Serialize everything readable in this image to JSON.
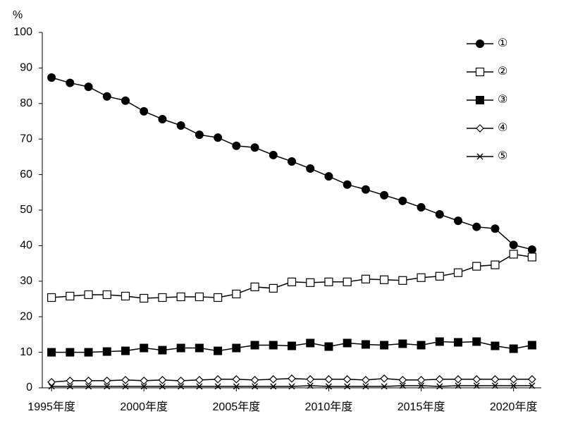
{
  "chart_data": {
    "type": "line",
    "y_label": "%",
    "x": [
      1995,
      1996,
      1997,
      1998,
      1999,
      2000,
      2001,
      2002,
      2003,
      2004,
      2005,
      2006,
      2007,
      2008,
      2009,
      2010,
      2011,
      2012,
      2013,
      2014,
      2015,
      2016,
      2017,
      2018,
      2019,
      2020,
      2021
    ],
    "xlim": [
      1994.5,
      2021.5
    ],
    "xticks": [
      {
        "value": 1995,
        "label": "1995年度"
      },
      {
        "value": 2000,
        "label": "2000年度"
      },
      {
        "value": 2005,
        "label": "2005年度"
      },
      {
        "value": 2010,
        "label": "2010年度"
      },
      {
        "value": 2015,
        "label": "2015年度"
      },
      {
        "value": 2020,
        "label": "2020年度"
      }
    ],
    "ylim": [
      0,
      100
    ],
    "yticks": [
      0,
      10,
      20,
      30,
      40,
      50,
      60,
      70,
      80,
      90,
      100
    ],
    "legend": "top-right",
    "series": [
      {
        "name": "①",
        "color": "#000000",
        "marker": "circle",
        "values": [
          87.3,
          85.8,
          84.7,
          82.0,
          80.8,
          77.8,
          75.6,
          73.8,
          71.2,
          70.4,
          68.1,
          67.6,
          65.5,
          63.7,
          61.7,
          59.5,
          57.2,
          55.8,
          54.2,
          52.6,
          50.8,
          48.8,
          47.0,
          45.3,
          44.8,
          40.2,
          38.9
        ]
      },
      {
        "name": "②",
        "color": "#000000",
        "marker": "square-open",
        "values": [
          25.4,
          25.8,
          26.2,
          26.2,
          25.8,
          25.2,
          25.4,
          25.6,
          25.6,
          25.4,
          26.4,
          28.4,
          28.0,
          29.8,
          29.6,
          29.8,
          29.8,
          30.6,
          30.4,
          30.2,
          31.0,
          31.4,
          32.4,
          34.2,
          34.6,
          37.6,
          36.8
        ]
      },
      {
        "name": "③",
        "color": "#000000",
        "marker": "square",
        "values": [
          10.0,
          10.0,
          10.0,
          10.2,
          10.4,
          11.2,
          10.6,
          11.2,
          11.2,
          10.4,
          11.2,
          12.0,
          12.0,
          11.8,
          12.6,
          11.6,
          12.6,
          12.2,
          12.0,
          12.4,
          12.0,
          13.0,
          12.8,
          13.0,
          11.8,
          11.0,
          12.0
        ]
      },
      {
        "name": "④",
        "color": "#000000",
        "marker": "diamond-open",
        "values": [
          1.6,
          2.0,
          2.0,
          2.0,
          2.2,
          2.0,
          2.2,
          2.0,
          2.2,
          2.4,
          2.4,
          2.2,
          2.4,
          2.6,
          2.4,
          2.4,
          2.4,
          2.2,
          2.6,
          2.2,
          2.2,
          2.4,
          2.4,
          2.4,
          2.4,
          2.4,
          2.4
        ]
      },
      {
        "name": "⑤",
        "color": "#000000",
        "marker": "x",
        "values": [
          0.4,
          0.4,
          0.4,
          0.4,
          0.4,
          0.4,
          0.4,
          0.4,
          0.4,
          0.4,
          0.4,
          0.4,
          0.4,
          0.4,
          0.6,
          0.4,
          0.4,
          0.4,
          0.4,
          0.6,
          0.6,
          0.4,
          0.6,
          0.6,
          0.6,
          0.6,
          0.6
        ]
      }
    ]
  }
}
